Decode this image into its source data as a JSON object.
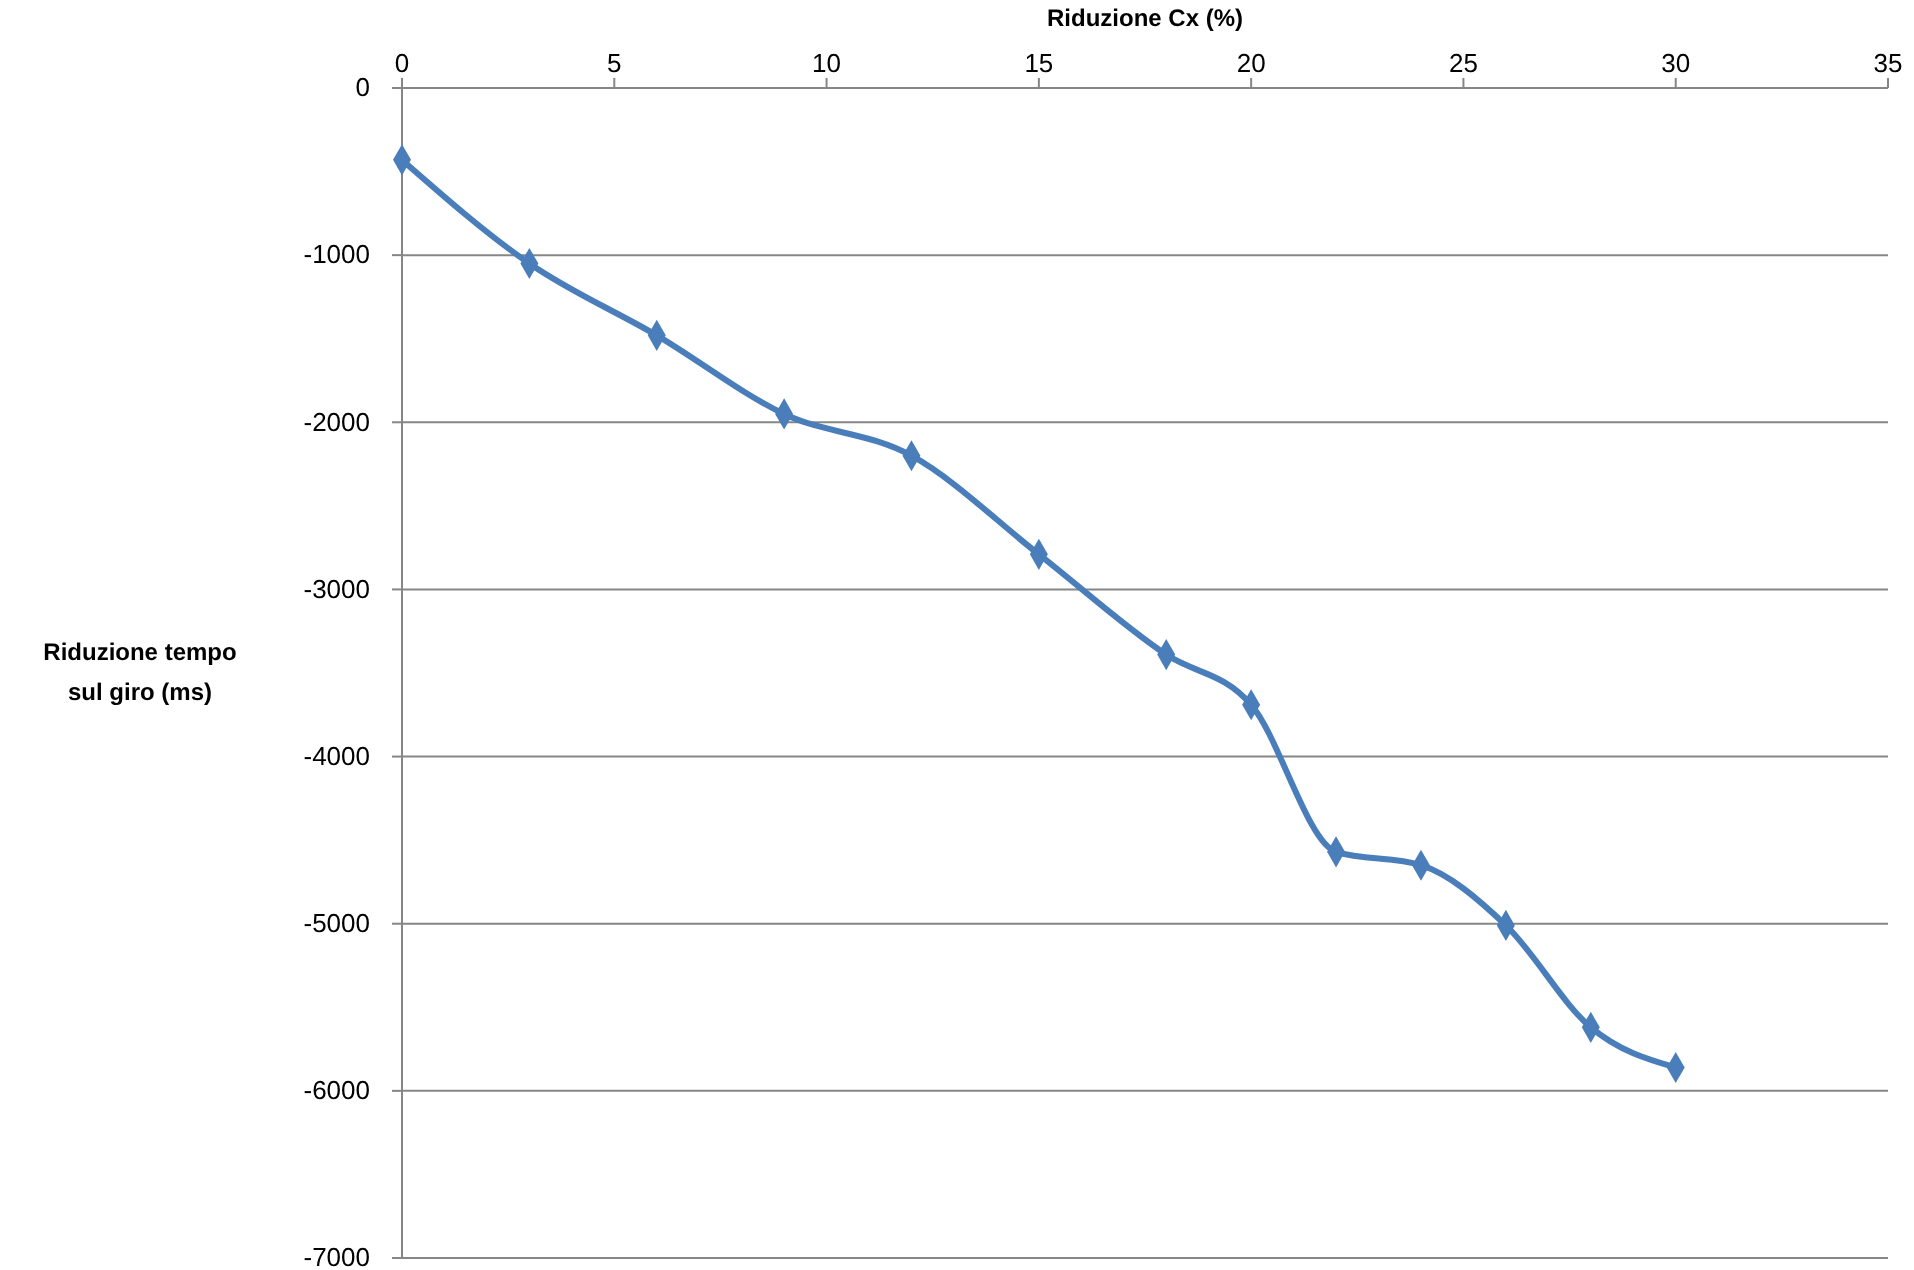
{
  "chart_data": {
    "type": "line",
    "xlabel": "Riduzione Cx  (%)",
    "ylabel": "Riduzione tempo sul giro (ms)",
    "x": [
      0,
      3,
      6,
      9,
      12,
      15,
      18,
      20,
      22,
      24,
      26,
      28,
      30
    ],
    "series": [
      {
        "color": "#4a7ebb",
        "values": [
          -430,
          -1050,
          -1480,
          -1950,
          -2200,
          -2790,
          -3390,
          -3690,
          -4570,
          -4650,
          -5010,
          -5620,
          -5860
        ]
      }
    ],
    "xlim": [
      0,
      35
    ],
    "xticks": [
      0,
      5,
      10,
      15,
      20,
      25,
      30,
      35
    ],
    "ylim": [
      -7000,
      0
    ],
    "yticks": [
      -7000,
      -6000,
      -5000,
      -4000,
      -3000,
      -2000,
      -1000,
      0
    ],
    "grid": "y",
    "marker": "diamond",
    "line_style": "solid"
  }
}
